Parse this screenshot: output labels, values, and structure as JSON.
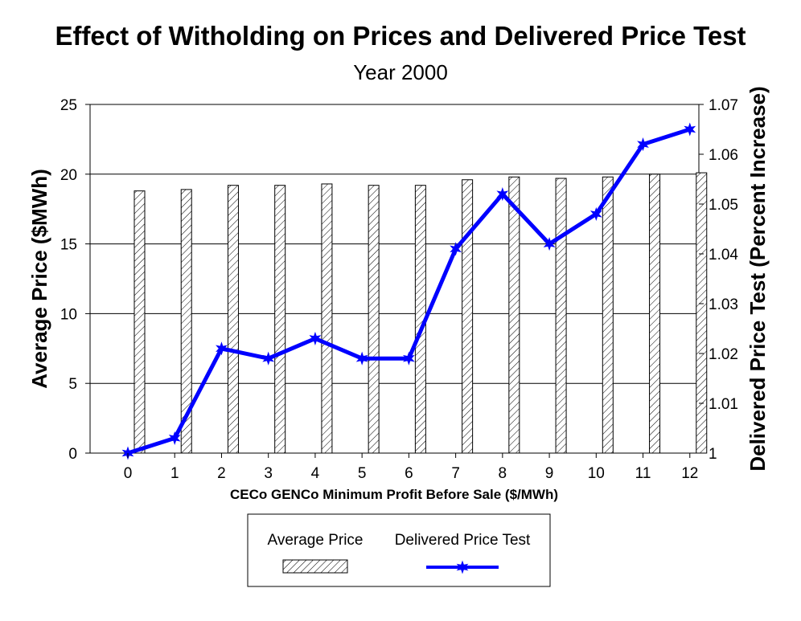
{
  "chart_data": {
    "type": "bar+line",
    "title": "Effect of Witholding on Prices and Delivered Price Test",
    "subtitle": "Year 2000",
    "xlabel": "CECo GENCo Minimum Profit Before Sale ($/MWh)",
    "ylabel": "Average Price ($MWh)",
    "y2label": "Delivered Price Test (Percent Increase)",
    "categories": [
      "0",
      "1",
      "2",
      "3",
      "4",
      "5",
      "6",
      "7",
      "8",
      "9",
      "10",
      "11",
      "12"
    ],
    "ylim": [
      0,
      25
    ],
    "yticks": [
      "0",
      "5",
      "10",
      "15",
      "20",
      "25"
    ],
    "y2lim": [
      1,
      1.07
    ],
    "y2ticks": [
      "1",
      "1.01",
      "1.02",
      "1.03",
      "1.04",
      "1.05",
      "1.06",
      "1.07"
    ],
    "grid": "horizontal",
    "series": [
      {
        "name": "Average Price",
        "type": "bar",
        "axis": "left",
        "pattern": "diagonal-hatch",
        "values": [
          18.8,
          18.9,
          19.2,
          19.2,
          19.3,
          19.2,
          19.2,
          19.6,
          19.8,
          19.7,
          19.8,
          20.0,
          20.1
        ]
      },
      {
        "name": "Delivered Price Test",
        "type": "line",
        "axis": "right",
        "color": "#0000ff",
        "marker": "star",
        "values": [
          1.0,
          1.003,
          1.021,
          1.019,
          1.023,
          1.019,
          1.019,
          1.041,
          1.052,
          1.042,
          1.048,
          1.062,
          1.065
        ]
      }
    ],
    "legend": {
      "placement": "bottom-center",
      "labels": [
        "Average Price",
        "Delivered Price Test"
      ]
    }
  }
}
